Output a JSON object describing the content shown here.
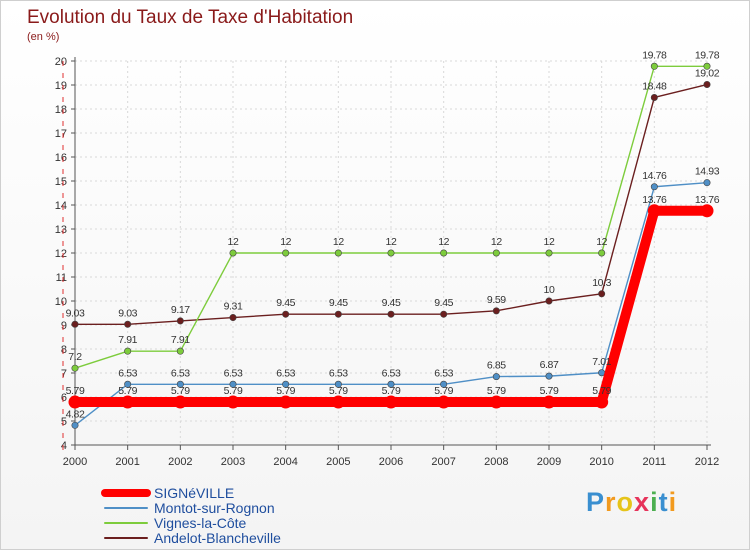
{
  "chart_data": {
    "type": "line",
    "title": "Evolution du Taux de Taxe d'Habitation",
    "subtitle": "(en %)",
    "xlabel": "",
    "ylabel": "(en %)",
    "x": [
      "2000",
      "2001",
      "2002",
      "2003",
      "2004",
      "2005",
      "2006",
      "2007",
      "2008",
      "2009",
      "2010",
      "2011",
      "2012"
    ],
    "ylim": [
      4,
      20
    ],
    "yticks": [
      4,
      5,
      6,
      7,
      8,
      9,
      10,
      11,
      12,
      13,
      14,
      15,
      16,
      17,
      18,
      19,
      20
    ],
    "grid": true,
    "legend_position": "bottom-left",
    "series": [
      {
        "name": "SIGNéVILLE",
        "color": "#ff0000",
        "values": [
          5.79,
          5.79,
          5.79,
          5.79,
          5.79,
          5.79,
          5.79,
          5.79,
          5.79,
          5.79,
          5.79,
          13.76,
          13.76
        ],
        "labels": [
          "5.79",
          "5.79",
          "5.79",
          "5.79",
          "5.79",
          "5.79",
          "5.79",
          "5.79",
          "5.79",
          "5.79",
          "5.79",
          "13.76",
          "13.76"
        ]
      },
      {
        "name": "Montot-sur-Rognon",
        "color": "#4f8fc6",
        "values": [
          4.82,
          6.53,
          6.53,
          6.53,
          6.53,
          6.53,
          6.53,
          6.53,
          6.85,
          6.87,
          7.01,
          14.76,
          14.93
        ],
        "labels": [
          "4.82",
          "6.53",
          "6.53",
          "6.53",
          "6.53",
          "6.53",
          "6.53",
          "6.53",
          "6.85",
          "6.87",
          "7.01",
          "14.76",
          "14.93"
        ]
      },
      {
        "name": "Vignes-la-Côte",
        "color": "#7dcc3c",
        "values": [
          7.2,
          7.91,
          7.91,
          12,
          12,
          12,
          12,
          12,
          12,
          12,
          12,
          19.78,
          19.78
        ],
        "labels": [
          "7.2",
          "7.91",
          "7.91",
          "12",
          "12",
          "12",
          "12",
          "12",
          "12",
          "12",
          "12",
          "19.78",
          "19.78"
        ]
      },
      {
        "name": "Andelot-Blancheville",
        "color": "#6b1f1f",
        "values": [
          9.03,
          9.03,
          9.17,
          9.31,
          9.45,
          9.45,
          9.45,
          9.45,
          9.59,
          10,
          10.3,
          18.48,
          19.02
        ],
        "labels": [
          "9.03",
          "9.03",
          "9.17",
          "9.31",
          "9.45",
          "9.45",
          "9.45",
          "9.45",
          "9.59",
          "10",
          "10.3",
          "18.48",
          "19.02"
        ]
      }
    ]
  },
  "logo": {
    "letters": [
      "P",
      "r",
      "o",
      "x",
      "i",
      "t",
      "i"
    ],
    "colors": [
      "#3a8fd0",
      "#f29a1e",
      "#e6c41a",
      "#e6335a",
      "#4caf50",
      "#3a8fd0",
      "#f29a1e"
    ]
  }
}
